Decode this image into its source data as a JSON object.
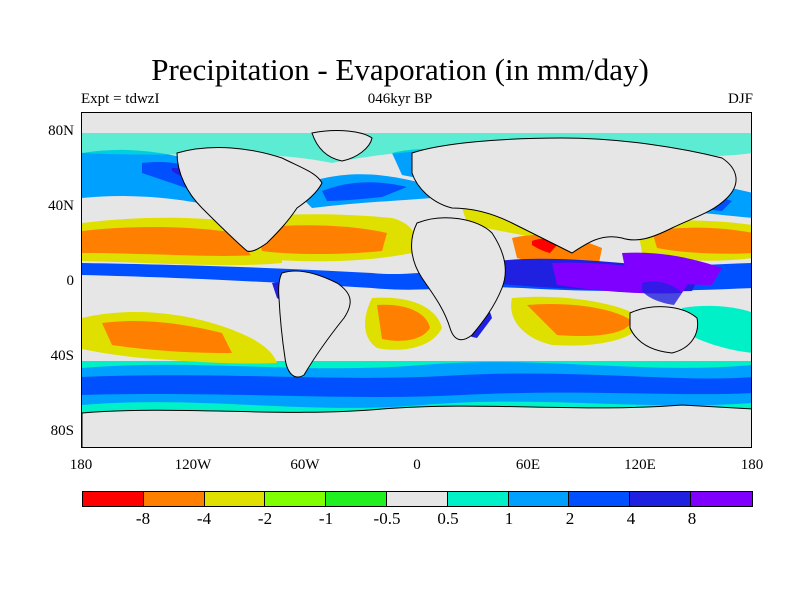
{
  "header": {
    "title": "Precipitation - Evaporation (in mm/day)",
    "left": "Expt = tdwzI",
    "center": "046kyr BP",
    "right": "DJF"
  },
  "axes": {
    "y_labels": [
      "80N",
      "40N",
      "0",
      "40S",
      "80S"
    ],
    "x_labels": [
      "180",
      "120W",
      "60W",
      "0",
      "60E",
      "120E",
      "180"
    ]
  },
  "legend": {
    "labels": [
      "-8",
      "-4",
      "-2",
      "-1",
      "-0.5",
      "0.5",
      "1",
      "2",
      "4",
      "8"
    ],
    "colors": [
      "#ff0000",
      "#ff8000",
      "#e0e000",
      "#80ff00",
      "#20f020",
      "#e6e6e6",
      "#00f0c8",
      "#00a0ff",
      "#0050ff",
      "#2020e0",
      "#8000ff"
    ]
  },
  "map": {
    "background_color": "#e6e6e6",
    "coastline_color": "#000000"
  }
}
